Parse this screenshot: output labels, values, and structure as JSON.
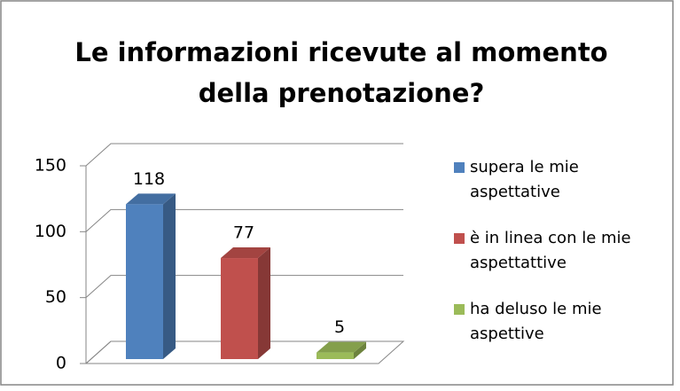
{
  "chart_data": {
    "type": "bar",
    "title": "Le informazioni ricevute al momento della prenotazione?",
    "series": [
      {
        "name": "supera le mie aspettative",
        "color": "#4f81bd",
        "values": [
          118
        ]
      },
      {
        "name": "è in linea con le mie aspettattive",
        "color": "#c0504d",
        "values": [
          77
        ]
      },
      {
        "name": "ha deluso le mie aspettive",
        "color": "#9bbb59",
        "values": [
          5
        ]
      }
    ],
    "ylim": [
      0,
      150
    ],
    "yticks": [
      0,
      50,
      100,
      150
    ],
    "grid": true,
    "legend": "right"
  }
}
